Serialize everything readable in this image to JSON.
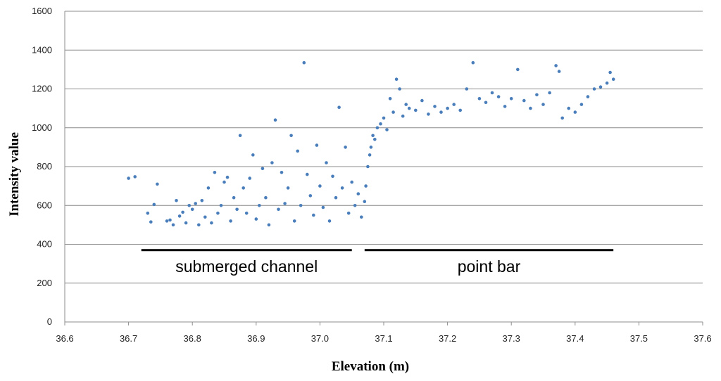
{
  "chart_data": {
    "type": "scatter",
    "title": "",
    "xlabel": "Elevation (m)",
    "ylabel": "Intensity value",
    "xlim": [
      36.6,
      37.6
    ],
    "ylim": [
      0,
      1600
    ],
    "xticks": [
      "36.6",
      "36.7",
      "36.8",
      "36.9",
      "37.0",
      "37.1",
      "37.2",
      "37.3",
      "37.4",
      "37.5",
      "37.6"
    ],
    "yticks": [
      "0",
      "200",
      "400",
      "600",
      "800",
      "1000",
      "1200",
      "1400",
      "1600"
    ],
    "grid": "horizontal",
    "legend": "none",
    "marker_color": "#4a7ebb",
    "annotations": [
      {
        "text": "submerged channel",
        "x_start": 36.72,
        "x_end": 37.05,
        "y": 370
      },
      {
        "text": "point bar",
        "x_start": 37.07,
        "x_end": 37.46,
        "y": 370
      }
    ],
    "series": [
      {
        "name": "",
        "points": [
          [
            36.7,
            740
          ],
          [
            36.71,
            748
          ],
          [
            36.73,
            560
          ],
          [
            36.735,
            515
          ],
          [
            36.74,
            605
          ],
          [
            36.745,
            710
          ],
          [
            36.76,
            520
          ],
          [
            36.765,
            525
          ],
          [
            36.77,
            500
          ],
          [
            36.775,
            625
          ],
          [
            36.78,
            545
          ],
          [
            36.785,
            565
          ],
          [
            36.79,
            510
          ],
          [
            36.795,
            600
          ],
          [
            36.8,
            580
          ],
          [
            36.805,
            610
          ],
          [
            36.81,
            500
          ],
          [
            36.815,
            625
          ],
          [
            36.82,
            540
          ],
          [
            36.825,
            690
          ],
          [
            36.83,
            510
          ],
          [
            36.835,
            770
          ],
          [
            36.84,
            560
          ],
          [
            36.845,
            600
          ],
          [
            36.85,
            720
          ],
          [
            36.855,
            745
          ],
          [
            36.86,
            520
          ],
          [
            36.865,
            640
          ],
          [
            36.87,
            580
          ],
          [
            36.875,
            960
          ],
          [
            36.88,
            690
          ],
          [
            36.885,
            560
          ],
          [
            36.89,
            740
          ],
          [
            36.895,
            860
          ],
          [
            36.9,
            530
          ],
          [
            36.905,
            600
          ],
          [
            36.91,
            790
          ],
          [
            36.915,
            640
          ],
          [
            36.92,
            500
          ],
          [
            36.925,
            820
          ],
          [
            36.93,
            1040
          ],
          [
            36.935,
            580
          ],
          [
            36.94,
            770
          ],
          [
            36.945,
            610
          ],
          [
            36.95,
            690
          ],
          [
            36.955,
            960
          ],
          [
            36.96,
            520
          ],
          [
            36.965,
            880
          ],
          [
            36.97,
            600
          ],
          [
            36.975,
            1335
          ],
          [
            36.98,
            760
          ],
          [
            36.985,
            650
          ],
          [
            36.99,
            550
          ],
          [
            36.995,
            910
          ],
          [
            37.0,
            700
          ],
          [
            37.005,
            590
          ],
          [
            37.01,
            820
          ],
          [
            37.015,
            520
          ],
          [
            37.02,
            750
          ],
          [
            37.025,
            640
          ],
          [
            37.03,
            1105
          ],
          [
            37.035,
            690
          ],
          [
            37.04,
            900
          ],
          [
            37.045,
            560
          ],
          [
            37.05,
            720
          ],
          [
            37.055,
            600
          ],
          [
            37.06,
            660
          ],
          [
            37.065,
            540
          ],
          [
            37.07,
            620
          ],
          [
            37.072,
            700
          ],
          [
            37.075,
            800
          ],
          [
            37.078,
            860
          ],
          [
            37.08,
            900
          ],
          [
            37.083,
            960
          ],
          [
            37.086,
            940
          ],
          [
            37.09,
            1000
          ],
          [
            37.095,
            1020
          ],
          [
            37.1,
            1050
          ],
          [
            37.105,
            990
          ],
          [
            37.11,
            1150
          ],
          [
            37.115,
            1080
          ],
          [
            37.12,
            1250
          ],
          [
            37.125,
            1200
          ],
          [
            37.13,
            1060
          ],
          [
            37.135,
            1120
          ],
          [
            37.14,
            1100
          ],
          [
            37.15,
            1090
          ],
          [
            37.16,
            1140
          ],
          [
            37.17,
            1070
          ],
          [
            37.18,
            1110
          ],
          [
            37.19,
            1080
          ],
          [
            37.2,
            1100
          ],
          [
            37.21,
            1120
          ],
          [
            37.22,
            1090
          ],
          [
            37.23,
            1200
          ],
          [
            37.24,
            1335
          ],
          [
            37.25,
            1150
          ],
          [
            37.26,
            1130
          ],
          [
            37.27,
            1180
          ],
          [
            37.28,
            1160
          ],
          [
            37.29,
            1110
          ],
          [
            37.3,
            1150
          ],
          [
            37.31,
            1300
          ],
          [
            37.32,
            1140
          ],
          [
            37.33,
            1100
          ],
          [
            37.34,
            1170
          ],
          [
            37.35,
            1120
          ],
          [
            37.36,
            1180
          ],
          [
            37.37,
            1320
          ],
          [
            37.375,
            1290
          ],
          [
            37.38,
            1050
          ],
          [
            37.39,
            1100
          ],
          [
            37.4,
            1080
          ],
          [
            37.41,
            1120
          ],
          [
            37.42,
            1160
          ],
          [
            37.43,
            1200
          ],
          [
            37.44,
            1210
          ],
          [
            37.45,
            1230
          ],
          [
            37.455,
            1285
          ],
          [
            37.46,
            1250
          ]
        ]
      }
    ]
  }
}
